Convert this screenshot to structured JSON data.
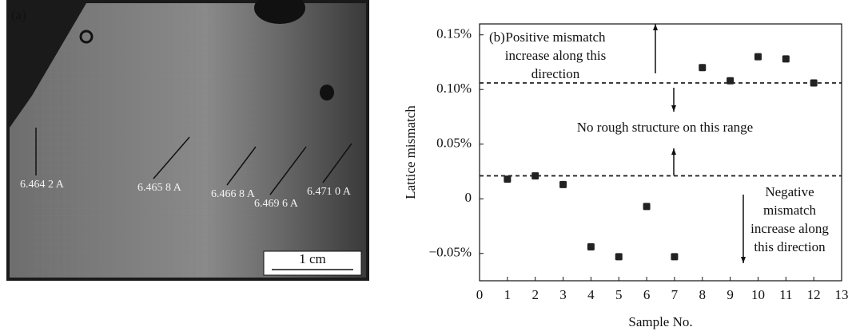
{
  "image_panel": {
    "panel_label": "(a)",
    "labels": [
      "6.464 2 A",
      "6.465 8 A",
      "6.466 8 A",
      "6.469 6 A",
      "6.471 0 A"
    ],
    "scale_bar": "1 cm"
  },
  "chart_data": {
    "type": "scatter",
    "panel_label": "(b)",
    "x_label": "Sample No.",
    "y_label": "Lattice mismatch",
    "series": [
      {
        "name": "Lattice mismatch",
        "color": "#222222",
        "x": [
          1,
          2,
          3,
          4,
          5,
          6,
          7,
          8,
          9,
          10,
          11,
          12
        ],
        "values": [
          0.018,
          0.021,
          0.013,
          -0.044,
          -0.053,
          -0.007,
          -0.053,
          0.12,
          0.108,
          0.13,
          0.128,
          0.106
        ]
      }
    ],
    "reference_lines": [
      0.106,
      0.021
    ],
    "annotations": [
      [
        "Positive mismatch",
        "increase along this",
        "direction"
      ],
      [
        "No rough structure on this range"
      ],
      [
        "Negative",
        "mismatch",
        "increase along",
        "this direction"
      ]
    ],
    "xlim": [
      0,
      13
    ],
    "xticks": [
      0,
      1,
      2,
      3,
      4,
      5,
      6,
      7,
      8,
      9,
      10,
      11,
      12,
      13
    ],
    "ylim": [
      -0.075,
      0.16
    ],
    "yticks": [
      {
        "value": -0.05,
        "label": "−0.05%"
      },
      0,
      {
        "value": 0.05,
        "label": "0.05%"
      },
      {
        "value": 0.1,
        "label": "0.10%"
      },
      {
        "value": 0.15,
        "label": "0.15%"
      }
    ]
  }
}
